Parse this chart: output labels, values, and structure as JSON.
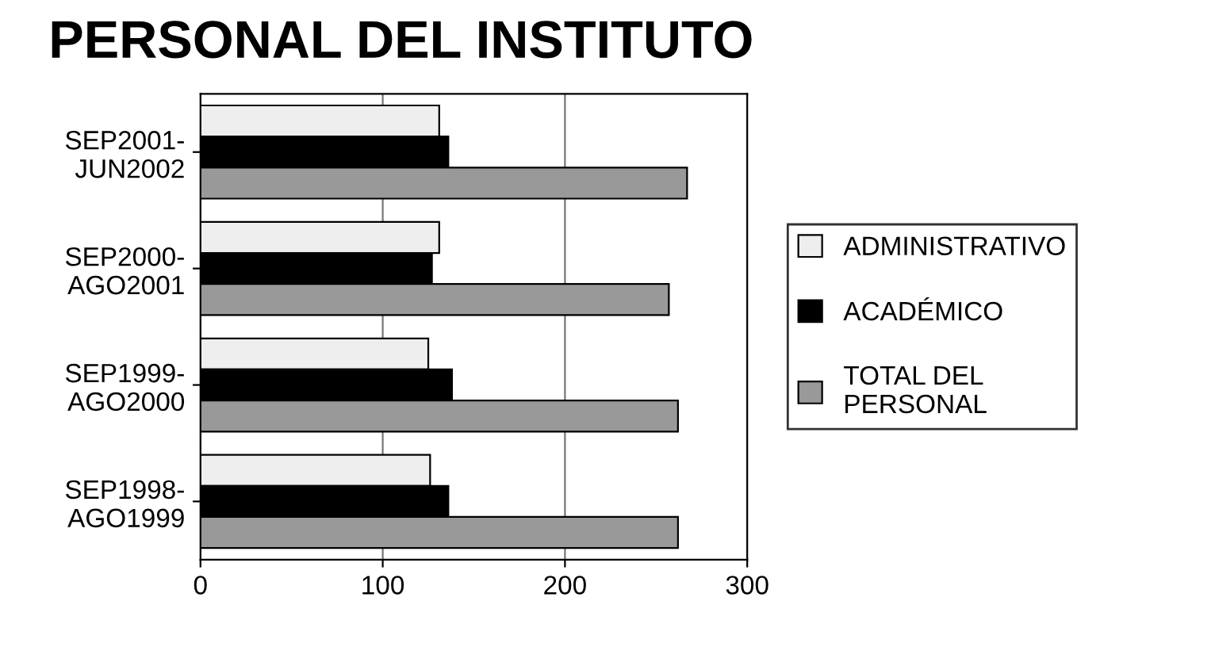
{
  "chart_data": {
    "type": "bar",
    "orientation": "horizontal",
    "title": "PERSONAL DEL INSTITUTO",
    "categories": [
      "SEP2001-\nJUN2002",
      "SEP2000-\nAGO2001",
      "SEP1999-\nAGO2000",
      "SEP1998-\nAGO1999"
    ],
    "series": [
      {
        "name": "ADMINISTRATIVO",
        "color": "#eeeeee",
        "values": [
          131,
          131,
          125,
          126
        ]
      },
      {
        "name": "ACADÉMICO",
        "color": "#000000",
        "values": [
          136,
          127,
          138,
          136
        ]
      },
      {
        "name": "TOTAL DEL\nPERSONAL",
        "color": "#999999",
        "values": [
          267,
          257,
          262,
          262
        ]
      }
    ],
    "xlim": [
      0,
      300
    ],
    "xticks": [
      0,
      100,
      200,
      300
    ],
    "grid": "x",
    "legend": "right"
  }
}
